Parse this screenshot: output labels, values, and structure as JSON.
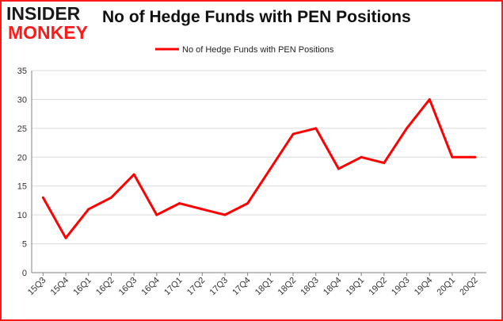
{
  "logo": {
    "line1": "INSIDER",
    "line2": "MONKEY"
  },
  "title": "No of Hedge Funds with PEN Positions",
  "colors": {
    "line": "#ff0000",
    "frame": "#ff1a1a",
    "grid": "#d9d9d9",
    "axis": "#808080"
  },
  "chart_data": {
    "type": "line",
    "title": "No of Hedge Funds with PEN Positions",
    "xlabel": "",
    "ylabel": "",
    "categories": [
      "15Q3",
      "15Q4",
      "16Q1",
      "16Q2",
      "16Q3",
      "16Q4",
      "17Q1",
      "17Q2",
      "17Q3",
      "17Q4",
      "18Q1",
      "18Q2",
      "18Q3",
      "18Q4",
      "19Q1",
      "19Q2",
      "19Q3",
      "19Q4",
      "20Q1",
      "20Q2"
    ],
    "series": [
      {
        "name": "No of Hedge Funds with PEN Positions",
        "values": [
          13,
          6,
          11,
          13,
          17,
          10,
          12,
          11,
          10,
          12,
          18,
          24,
          25,
          18,
          20,
          19,
          25,
          30,
          20,
          20
        ]
      }
    ],
    "ylim": [
      0,
      35
    ],
    "yticks": [
      0,
      5,
      10,
      15,
      20,
      25,
      30,
      35
    ],
    "grid": true,
    "legend": "top-center"
  }
}
